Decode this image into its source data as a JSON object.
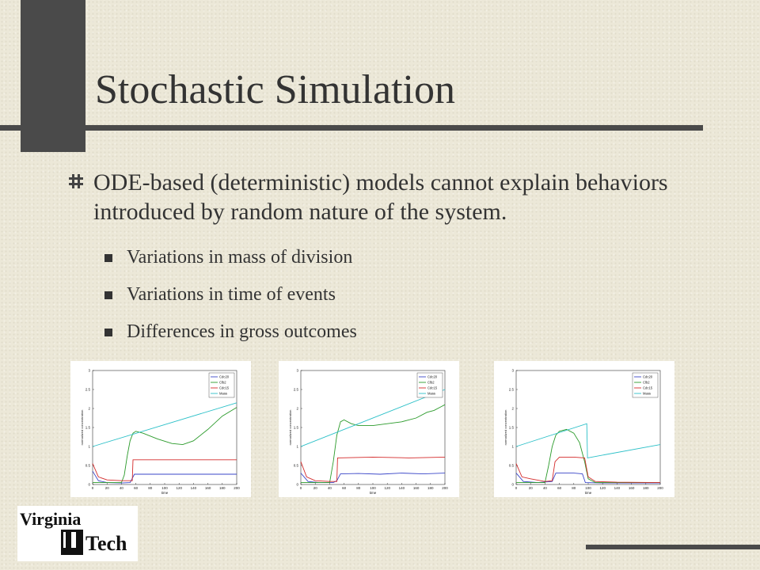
{
  "slide": {
    "title": "Stochastic Simulation",
    "main_bullet": "ODE-based (deterministic) models cannot explain behaviors introduced by random nature of the system.",
    "sub_bullets": [
      "Variations in mass of division",
      "Variations in time of events",
      "Differences in gross outcomes"
    ],
    "logo": {
      "line1": "Virginia",
      "line2": "Tech"
    }
  },
  "chart_data": [
    {
      "type": "line",
      "xlabel": "time",
      "ylabel": "normalized concentration",
      "xlim": [
        0,
        200
      ],
      "ylim": [
        0,
        3
      ],
      "xticks": [
        0,
        20,
        40,
        60,
        80,
        100,
        120,
        140,
        160,
        180,
        200
      ],
      "yticks": [
        0,
        0.5,
        1,
        1.5,
        2,
        2.5,
        3
      ],
      "legend": "top-right",
      "series": [
        {
          "name": "Cdc20",
          "color": "#3a46c8",
          "x": [
            0,
            8,
            20,
            40,
            52,
            58,
            200
          ],
          "y": [
            0.35,
            0.1,
            0.05,
            0.04,
            0.05,
            0.27,
            0.27
          ]
        },
        {
          "name": "Clb2",
          "color": "#2a9a2a",
          "x": [
            0,
            40,
            44,
            48,
            52,
            56,
            60,
            70,
            90,
            110,
            125,
            140,
            160,
            180,
            200
          ],
          "y": [
            0.05,
            0.05,
            0.25,
            0.75,
            1.15,
            1.35,
            1.4,
            1.35,
            1.2,
            1.08,
            1.05,
            1.15,
            1.45,
            1.8,
            2.03
          ]
        },
        {
          "name": "Cdc15",
          "color": "#d42a2a",
          "x": [
            0,
            8,
            20,
            40,
            55,
            56,
            200
          ],
          "y": [
            0.55,
            0.2,
            0.12,
            0.1,
            0.1,
            0.65,
            0.65
          ]
        },
        {
          "name": "Mass",
          "color": "#2cc0c8",
          "x": [
            0,
            200
          ],
          "y": [
            1.0,
            2.15
          ]
        }
      ]
    },
    {
      "type": "line",
      "xlabel": "time",
      "ylabel": "normalized concentration",
      "xlim": [
        0,
        200
      ],
      "ylim": [
        0,
        3
      ],
      "xticks": [
        0,
        20,
        40,
        60,
        80,
        100,
        120,
        140,
        160,
        180,
        200
      ],
      "yticks": [
        0,
        0.5,
        1,
        1.5,
        2,
        2.5,
        3
      ],
      "legend": "top-right",
      "series": [
        {
          "name": "Cdc20",
          "color": "#3a46c8",
          "x": [
            0,
            10,
            25,
            45,
            50,
            55,
            80,
            110,
            140,
            170,
            200
          ],
          "y": [
            0.3,
            0.08,
            0.05,
            0.05,
            0.1,
            0.28,
            0.29,
            0.27,
            0.3,
            0.28,
            0.3
          ]
        },
        {
          "name": "Clb2",
          "color": "#2a9a2a",
          "x": [
            0,
            40,
            45,
            50,
            55,
            60,
            70,
            80,
            100,
            120,
            140,
            160,
            175,
            185,
            195,
            200
          ],
          "y": [
            0.05,
            0.05,
            0.6,
            1.3,
            1.65,
            1.7,
            1.6,
            1.55,
            1.55,
            1.6,
            1.65,
            1.75,
            1.9,
            1.95,
            2.05,
            2.1
          ]
        },
        {
          "name": "Cdc15",
          "color": "#d42a2a",
          "x": [
            0,
            8,
            20,
            40,
            50,
            51,
            100,
            150,
            200
          ],
          "y": [
            0.6,
            0.2,
            0.1,
            0.08,
            0.08,
            0.7,
            0.72,
            0.7,
            0.72
          ]
        },
        {
          "name": "Mass",
          "color": "#2cc0c8",
          "x": [
            0,
            200
          ],
          "y": [
            1.0,
            2.5
          ]
        }
      ]
    },
    {
      "type": "line",
      "xlabel": "time",
      "ylabel": "normalized concentration",
      "xlim": [
        0,
        200
      ],
      "ylim": [
        0,
        3
      ],
      "xticks": [
        0,
        20,
        40,
        60,
        80,
        100,
        120,
        140,
        160,
        180,
        200
      ],
      "yticks": [
        0,
        0.5,
        1,
        1.5,
        2,
        2.5,
        3
      ],
      "legend": "top-right",
      "series": [
        {
          "name": "Cdc20",
          "color": "#3a46c8",
          "x": [
            0,
            10,
            30,
            50,
            55,
            60,
            80,
            92,
            96,
            120,
            160,
            200
          ],
          "y": [
            0.3,
            0.08,
            0.05,
            0.08,
            0.3,
            0.3,
            0.3,
            0.28,
            0.05,
            0.04,
            0.04,
            0.04
          ]
        },
        {
          "name": "Clb2",
          "color": "#2a9a2a",
          "x": [
            0,
            40,
            45,
            50,
            55,
            60,
            70,
            80,
            88,
            95,
            100,
            110,
            200
          ],
          "y": [
            0.05,
            0.05,
            0.5,
            1.0,
            1.3,
            1.4,
            1.45,
            1.35,
            1.1,
            0.6,
            0.15,
            0.05,
            0.05
          ]
        },
        {
          "name": "Cdc15",
          "color": "#d42a2a",
          "x": [
            0,
            8,
            20,
            40,
            50,
            54,
            60,
            80,
            95,
            100,
            110,
            140,
            200
          ],
          "y": [
            0.55,
            0.2,
            0.15,
            0.08,
            0.1,
            0.6,
            0.72,
            0.72,
            0.7,
            0.2,
            0.08,
            0.06,
            0.05
          ]
        },
        {
          "name": "Mass",
          "color": "#2cc0c8",
          "x": [
            0,
            98,
            99,
            200
          ],
          "y": [
            1.0,
            1.6,
            0.7,
            1.05
          ]
        }
      ]
    }
  ]
}
